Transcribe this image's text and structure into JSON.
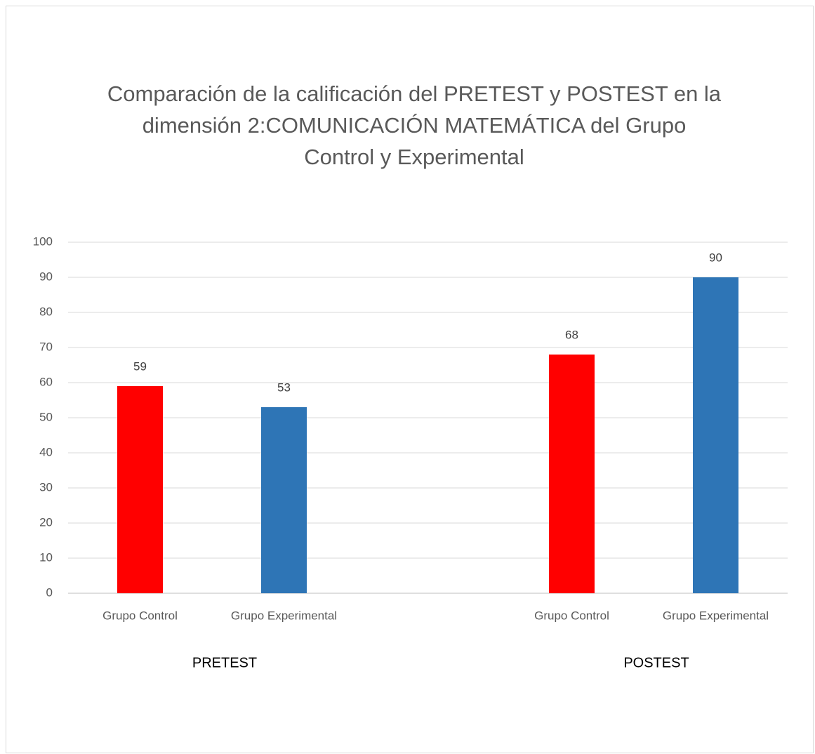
{
  "chart_data": {
    "type": "bar",
    "title": [
      "Comparación de la calificación del PRETEST y POSTEST en la",
      "dimensión 2:COMUNICACIÓN MATEMÁTICA del Grupo",
      "Control y Experimental"
    ],
    "groups": [
      {
        "name": "PRETEST",
        "categories": [
          "Grupo Control",
          "Grupo Experimental"
        ],
        "values": [
          59,
          53
        ]
      },
      {
        "name": "POSTEST",
        "categories": [
          "Grupo Control",
          "Grupo Experimental"
        ],
        "values": [
          68,
          90
        ]
      }
    ],
    "colors": [
      "#ff0000",
      "#2e75b6"
    ],
    "ylim": [
      0,
      100
    ],
    "yticks": [
      0,
      10,
      20,
      30,
      40,
      50,
      60,
      70,
      80,
      90,
      100
    ],
    "grid": true
  }
}
